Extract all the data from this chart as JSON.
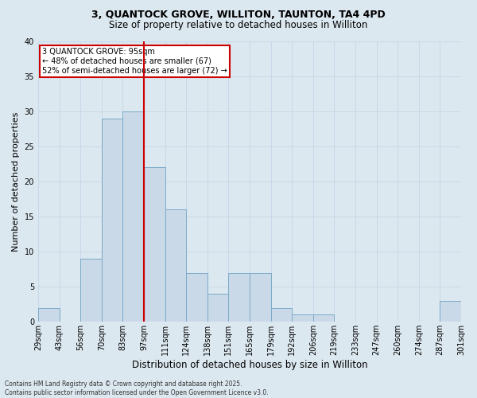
{
  "title_line1": "3, QUANTOCK GROVE, WILLITON, TAUNTON, TA4 4PD",
  "title_line2": "Size of property relative to detached houses in Williton",
  "xlabel": "Distribution of detached houses by size in Williton",
  "ylabel": "Number of detached properties",
  "bin_labels": [
    "29sqm",
    "43sqm",
    "56sqm",
    "70sqm",
    "83sqm",
    "97sqm",
    "111sqm",
    "124sqm",
    "138sqm",
    "151sqm",
    "165sqm",
    "179sqm",
    "192sqm",
    "206sqm",
    "219sqm",
    "233sqm",
    "247sqm",
    "260sqm",
    "274sqm",
    "287sqm",
    "301sqm"
  ],
  "bar_values": [
    2,
    0,
    9,
    29,
    30,
    22,
    16,
    7,
    4,
    7,
    7,
    2,
    1,
    1,
    0,
    0,
    0,
    0,
    0,
    3
  ],
  "bar_color": "#c9d9e8",
  "bar_edge_color": "#7aaac8",
  "grid_color": "#c8d8e8",
  "vline_color": "#cc0000",
  "vline_position": 5,
  "annotation_text": "3 QUANTOCK GROVE: 95sqm\n← 48% of detached houses are smaller (67)\n52% of semi-detached houses are larger (72) →",
  "annotation_box_facecolor": "#ffffff",
  "annotation_box_edgecolor": "#cc0000",
  "ylim": [
    0,
    40
  ],
  "yticks": [
    0,
    5,
    10,
    15,
    20,
    25,
    30,
    35,
    40
  ],
  "footnote": "Contains HM Land Registry data © Crown copyright and database right 2025.\nContains public sector information licensed under the Open Government Licence v3.0.",
  "bg_color": "#dce8f0",
  "plot_bg_color": "#dce8f0",
  "title1_fontsize": 9,
  "title2_fontsize": 8.5,
  "ylabel_fontsize": 8,
  "xlabel_fontsize": 8.5,
  "annot_fontsize": 7,
  "tick_fontsize": 7,
  "footnote_fontsize": 5.5
}
